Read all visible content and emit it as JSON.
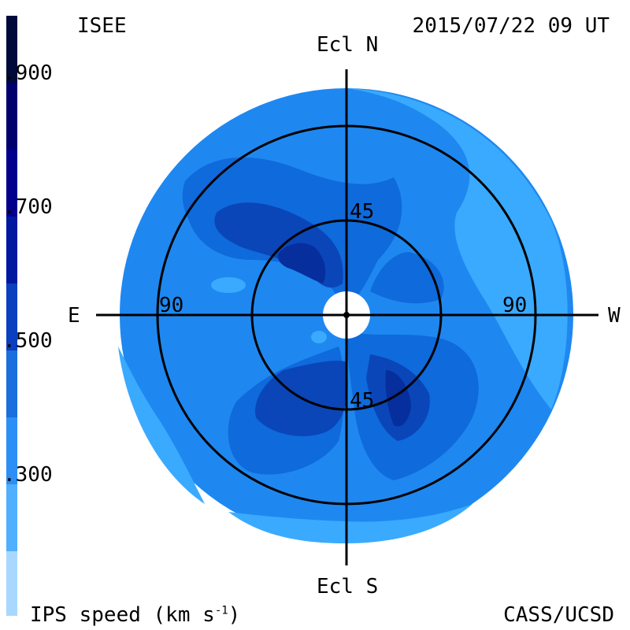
{
  "header": {
    "observatory": "ISEE",
    "timestamp": "2015/07/22 09 UT"
  },
  "footer": {
    "quantity": "IPS speed (km s",
    "quantity_sup": "-1",
    "quantity_close": ")",
    "credit": "CASS/UCSD"
  },
  "directions": {
    "north": "Ecl N",
    "south": "Ecl S",
    "east": "E",
    "west": "W"
  },
  "rings": {
    "inner_label_top": "45",
    "inner_label_bottom": "45",
    "outer_label_left": "90",
    "outer_label_right": "90"
  },
  "colorbar": {
    "ticks": [
      ".900",
      ".700",
      ".500",
      ".300"
    ],
    "colors": [
      "#000a3a",
      "#00006e",
      "#0017a0",
      "#0a3fbf",
      "#1a6edd",
      "#2b8ff5",
      "#4fb0ff",
      "#a8d8ff"
    ]
  },
  "map_colors": {
    "v300": "#3aaaff",
    "v400": "#1e88f0",
    "v500": "#0f6adc",
    "v600": "#0a46b8",
    "v700": "#062e9c"
  }
}
